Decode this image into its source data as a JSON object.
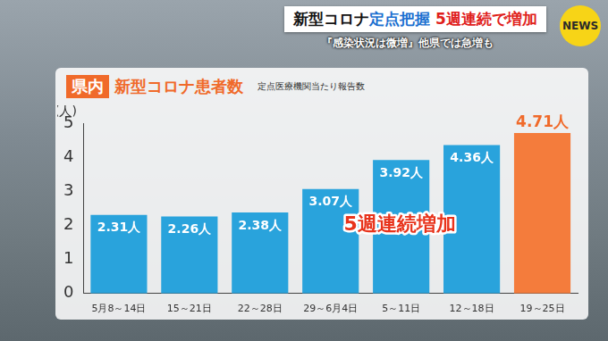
{
  "header": {
    "headline": [
      "新型コロナ",
      "定点把握",
      " 5週連続で増加"
    ],
    "subline": "『感染状況は微増』他県では急増も",
    "logo": "NEWS"
  },
  "chart_data": {
    "type": "bar",
    "title_badge": "県内",
    "title": "新型コロナ患者数",
    "subtitle": "定点医療機関当たり報告数",
    "y_label": "(人)",
    "categories": [
      "5月8～14日",
      "15～21日",
      "22～28日",
      "29～6月4日",
      "5～11日",
      "12～18日",
      "19～25日"
    ],
    "values": [
      2.31,
      2.26,
      2.38,
      3.07,
      3.92,
      4.36,
      4.71
    ],
    "value_labels": [
      "2.31人",
      "2.26人",
      "2.38人",
      "3.07人",
      "3.92人",
      "4.36人",
      "4.71人"
    ],
    "colors": [
      "#29a3dc",
      "#29a3dc",
      "#29a3dc",
      "#29a3dc",
      "#29a3dc",
      "#29a3dc",
      "#f47c3c"
    ],
    "annotations": [
      "5週連続増加"
    ],
    "ylim": [
      0,
      5
    ],
    "yticks": [
      0,
      1,
      2,
      3,
      4,
      5
    ],
    "grid": false,
    "data_labels": true
  }
}
